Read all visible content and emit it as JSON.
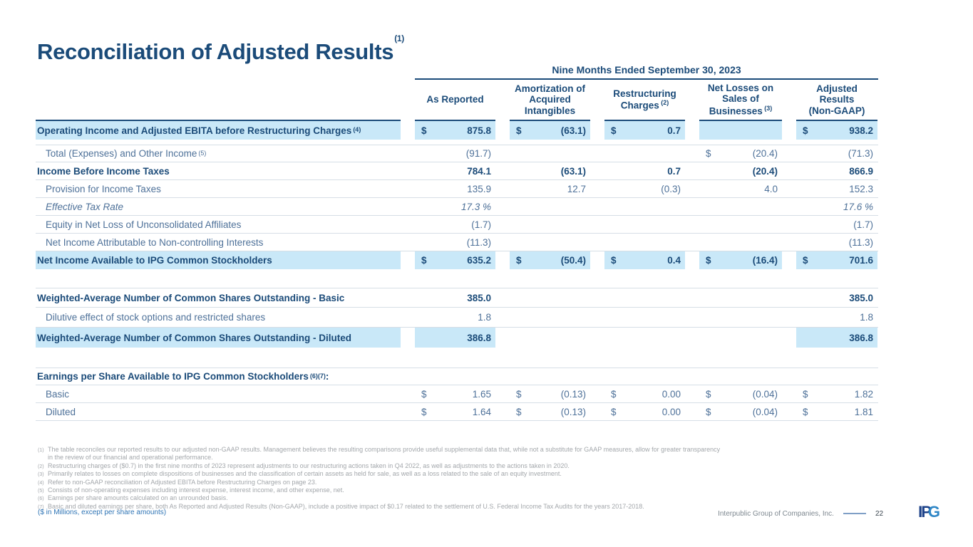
{
  "slide": {
    "title": "Reconciliation of Adjusted Results",
    "title_sup": "(1)"
  },
  "table": {
    "period": "Nine Months Ended September 30, 2023",
    "columns": [
      {
        "lines": [
          "As Reported"
        ],
        "sup": ""
      },
      {
        "lines": [
          "Amortization of",
          "Acquired",
          "Intangibles"
        ],
        "sup": ""
      },
      {
        "lines": [
          "Restructuring",
          "Charges"
        ],
        "sup": "(2)"
      },
      {
        "lines": [
          "Net Losses on",
          "Sales of",
          "Businesses"
        ],
        "sup": "(3)"
      },
      {
        "lines": [
          "Adjusted",
          "Results",
          "(Non-GAAP)"
        ],
        "sup": ""
      }
    ],
    "rows": [
      {
        "label": "Operating Income and Adjusted EBITA before Restructuring Charges",
        "sup": "(4)",
        "classes": "bold hl darktop nob tall",
        "gap": 7,
        "cells": [
          {
            "d": "$",
            "v": "875.8",
            "hl": true
          },
          {
            "d": "$",
            "v": "(63.1)",
            "hl": true
          },
          {
            "d": "$",
            "v": "0.7",
            "hl": true
          },
          {
            "d": "",
            "v": "",
            "hl": true
          },
          {
            "d": "$",
            "v": "938.2",
            "hl": true
          }
        ]
      },
      {
        "label": "Total (Expenses) and Other Income",
        "sup": "(5)",
        "classes": "sep ind",
        "cells": [
          {
            "v": "(91.7)"
          },
          {},
          {},
          {
            "d": "$",
            "v": "(20.4)"
          },
          {
            "v": "(71.3)"
          }
        ]
      },
      {
        "label": "Income Before Income Taxes",
        "classes": "bold",
        "cells": [
          {
            "v": "784.1"
          },
          {
            "v": "(63.1)"
          },
          {
            "v": "0.7"
          },
          {
            "v": "(20.4)"
          },
          {
            "v": "866.9"
          }
        ]
      },
      {
        "label": "Provision for Income Taxes",
        "classes": "ind",
        "cells": [
          {
            "v": "135.9"
          },
          {
            "v": "12.7"
          },
          {
            "v": "(0.3)"
          },
          {
            "v": "4.0"
          },
          {
            "v": "152.3"
          }
        ]
      },
      {
        "label": "Effective Tax Rate",
        "classes": "ind italic",
        "cells": [
          {
            "v": "17.3 %"
          },
          {},
          {},
          {},
          {
            "v": "17.6 %"
          }
        ]
      },
      {
        "label": "Equity in Net Loss of Unconsolidated Affiliates",
        "classes": "ind",
        "cells": [
          {
            "v": "(1.7)"
          },
          {},
          {},
          {},
          {
            "v": "(1.7)"
          }
        ]
      },
      {
        "label": "Net Income Attributable to Non-controlling Interests",
        "classes": "ind",
        "cells": [
          {
            "v": "(11.3)"
          },
          {},
          {},
          {},
          {
            "v": "(11.3)"
          }
        ]
      },
      {
        "label": "Net Income Available to IPG Common Stockholders",
        "classes": "bold hl nob",
        "gap": 26,
        "cells": [
          {
            "d": "$",
            "v": "635.2",
            "hl": true
          },
          {
            "d": "$",
            "v": "(50.4)",
            "hl": true
          },
          {
            "d": "$",
            "v": "0.4",
            "hl": true
          },
          {
            "d": "$",
            "v": "(16.4)",
            "hl": true
          },
          {
            "d": "$",
            "v": "701.6",
            "hl": true
          }
        ]
      },
      {
        "label": "Weighted-Average Number of Common Shares Outstanding - Basic",
        "classes": "bold sep tall",
        "cells": [
          {
            "v": "385.0"
          },
          {},
          {},
          {},
          {
            "v": "385.0"
          }
        ]
      },
      {
        "label": "Dilutive effect of stock options and restricted shares",
        "classes": "ind tall",
        "cells": [
          {
            "v": "1.8"
          },
          {},
          {},
          {},
          {
            "v": "1.8"
          }
        ]
      },
      {
        "label": "Weighted-Average Number of Common Shares Outstanding - Diluted",
        "classes": "bold hl nob tall",
        "gap": 28,
        "cells": [
          {
            "v": "386.8",
            "hl": true
          },
          {},
          {},
          {},
          {
            "v": "386.8",
            "hl": true
          }
        ]
      },
      {
        "label": "Earnings per Share Available to IPG Common Stockholders",
        "sup": "(6)(7)",
        "after": ":",
        "classes": "bold sep",
        "cells": [
          {},
          {},
          {},
          {},
          {}
        ]
      },
      {
        "label": "Basic",
        "classes": "ind",
        "cells": [
          {
            "d": "$",
            "v": "1.65"
          },
          {
            "d": "$",
            "v": "(0.13)"
          },
          {
            "d": "$",
            "v": "0.00"
          },
          {
            "d": "$",
            "v": "(0.04)"
          },
          {
            "d": "$",
            "v": "1.82"
          }
        ]
      },
      {
        "label": "Diluted",
        "classes": "ind",
        "cells": [
          {
            "d": "$",
            "v": "1.64"
          },
          {
            "d": "$",
            "v": "(0.13)"
          },
          {
            "d": "$",
            "v": "0.00"
          },
          {
            "d": "$",
            "v": "(0.04)"
          },
          {
            "d": "$",
            "v": "1.81"
          }
        ]
      }
    ]
  },
  "footnotes": [
    {
      "marker": "(1)",
      "text": "The table reconciles our reported results to our adjusted non-GAAP results. Management believes the resulting comparisons provide useful supplemental data that, while not a substitute for GAAP measures, allow for greater transparency in the review of our financial and operational performance."
    },
    {
      "marker": "(2)",
      "text": "Restructuring charges of ($0.7) in the first nine months of 2023 represent adjustments to our restructuring actions taken in Q4 2022, as well as adjustments to the actions taken in 2020."
    },
    {
      "marker": "(3)",
      "text": "Primarily relates to losses on complete dispositions of businesses and the classification of certain assets as held for sale, as well as a loss related to the sale of an equity investment."
    },
    {
      "marker": "(4)",
      "text": "Refer to non-GAAP reconciliation of Adjusted EBITA before Restructuring Charges on page 23."
    },
    {
      "marker": "(5)",
      "text": "Consists of non-operating expenses including interest expense, interest income, and other expense, net."
    },
    {
      "marker": "(6)",
      "text": "Earnings per share amounts calculated on an unrounded basis."
    },
    {
      "marker": "(7)",
      "text": "Basic and diluted earnings per share, both As Reported and Adjusted Results (Non-GAAP), include a positive impact of $0.17 related to the settlement of U.S. Federal Income Tax Audits for the years 2017-2018."
    }
  ],
  "footer": {
    "units": "($ in Millions, except per share amounts)",
    "company": "Interpublic Group of Companies, Inc.",
    "page_number": "22",
    "logo_dark": "IP",
    "logo_light": "G"
  },
  "colors": {
    "accent_navy": "#1B4B79",
    "highlight_blue": "#C9E8F8",
    "row_text_light": "#4E7199",
    "footnote_gray": "#A3A7AB",
    "units_blue": "#2E74B5"
  }
}
